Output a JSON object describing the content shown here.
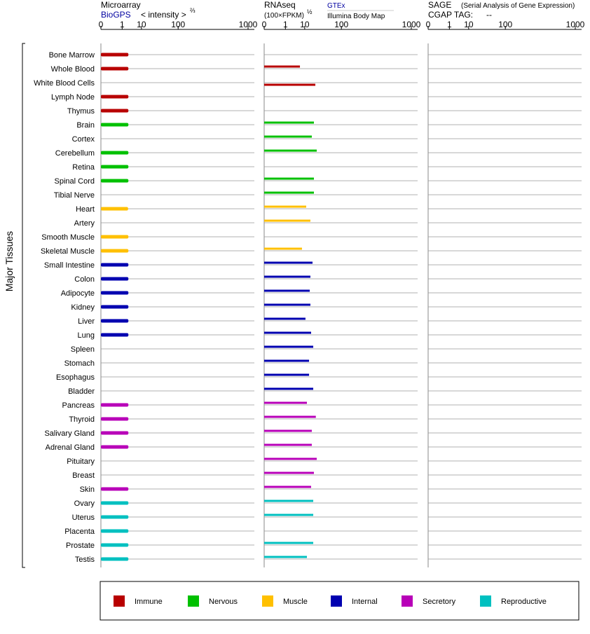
{
  "chart_data": [
    {
      "type": "bar",
      "title": "Microarray",
      "series_label_note": "< intensity >",
      "exponent": "⅔",
      "ylabel": "Major Tissues",
      "categories": [
        "Bone Marrow",
        "Whole Blood",
        "White Blood Cells",
        "Lymph Node",
        "Thymus",
        "Brain",
        "Cortex",
        "Cerebellum",
        "Retina",
        "Spinal Cord",
        "Tibial Nerve",
        "Heart",
        "Artery",
        "Smooth Muscle",
        "Skeletal Muscle",
        "Small Intestine",
        "Colon",
        "Adipocyte",
        "Kidney",
        "Liver",
        "Lung",
        "Spleen",
        "Stomach",
        "Esophagus",
        "Bladder",
        "Pancreas",
        "Thyroid",
        "Salivary Gland",
        "Adrenal Gland",
        "Pituitary",
        "Breast",
        "Skin",
        "Ovary",
        "Uterus",
        "Placenta",
        "Prostate",
        "Testis"
      ],
      "category_groups": [
        "Immune",
        "Immune",
        "Immune",
        "Immune",
        "Immune",
        "Nervous",
        "Nervous",
        "Nervous",
        "Nervous",
        "Nervous",
        "Nervous",
        "Muscle",
        "Muscle",
        "Muscle",
        "Muscle",
        "Internal",
        "Internal",
        "Internal",
        "Internal",
        "Internal",
        "Internal",
        "Internal",
        "Internal",
        "Internal",
        "Internal",
        "Secretory",
        "Secretory",
        "Secretory",
        "Secretory",
        "Secretory",
        "Secretory",
        "Secretory",
        "Reproductive",
        "Reproductive",
        "Reproductive",
        "Reproductive",
        "Reproductive"
      ],
      "legend": [
        {
          "name": "Immune",
          "color": "#b80000"
        },
        {
          "name": "Nervous",
          "color": "#00c000"
        },
        {
          "name": "Muscle",
          "color": "#ffc000"
        },
        {
          "name": "Internal",
          "color": "#0000b0"
        },
        {
          "name": "Secretory",
          "color": "#b800b8"
        },
        {
          "name": "Reproductive",
          "color": "#00c0c0"
        }
      ],
      "xlim": [
        0,
        1000
      ],
      "xticks": [
        0,
        1,
        10,
        100,
        1000
      ],
      "series": [
        {
          "name": "BioGPS",
          "values": [
            2.5,
            2.5,
            null,
            2.5,
            2.5,
            2.5,
            null,
            2.5,
            2.5,
            2.5,
            null,
            2.4,
            null,
            2.5,
            2.5,
            2.5,
            2.5,
            2.5,
            2.5,
            2.5,
            2.5,
            null,
            null,
            null,
            null,
            2.5,
            2.5,
            2.5,
            2.5,
            null,
            null,
            2.5,
            2.5,
            2.5,
            2.5,
            2.5,
            2.5
          ]
        }
      ]
    },
    {
      "type": "bar",
      "title": "RNAseq",
      "series_label_note": "(100×FPKM)",
      "exponent": "½",
      "xlim": [
        0,
        1000
      ],
      "xticks": [
        0,
        1,
        10,
        100,
        1000
      ],
      "series": [
        {
          "name": "GTEx",
          "values": [
            null,
            6.4,
            null,
            null,
            null,
            20.8,
            17.8,
            25.3,
            null,
            20.8,
            20.8,
            11.4,
            16,
            null,
            7.8,
            18.8,
            16,
            15.2,
            16,
            10.7,
            16.9,
            19.8,
            14.4,
            14.4,
            19.8,
            12.1,
            23.8,
            17.8,
            17.8,
            25.3,
            20.8,
            16.9,
            19.8,
            19.8,
            null,
            19.8,
            12.1
          ]
        },
        {
          "name": "Illumina Body Map",
          "values": [
            null,
            null,
            23,
            null,
            null,
            null,
            null,
            null,
            null,
            null,
            null,
            null,
            null,
            null,
            null,
            null,
            null,
            null,
            null,
            null,
            null,
            null,
            null,
            null,
            null,
            null,
            null,
            null,
            null,
            null,
            null,
            null,
            null,
            null,
            null,
            null,
            null
          ]
        }
      ]
    },
    {
      "type": "bar",
      "title": "SAGE",
      "subtitle": "(Serial Analysis of Gene Expression)",
      "tag_label": "CGAP TAG:",
      "tag": "--",
      "xlim": [
        0,
        1000
      ],
      "xticks": [
        0,
        1,
        10,
        100,
        1000
      ],
      "series": []
    }
  ]
}
